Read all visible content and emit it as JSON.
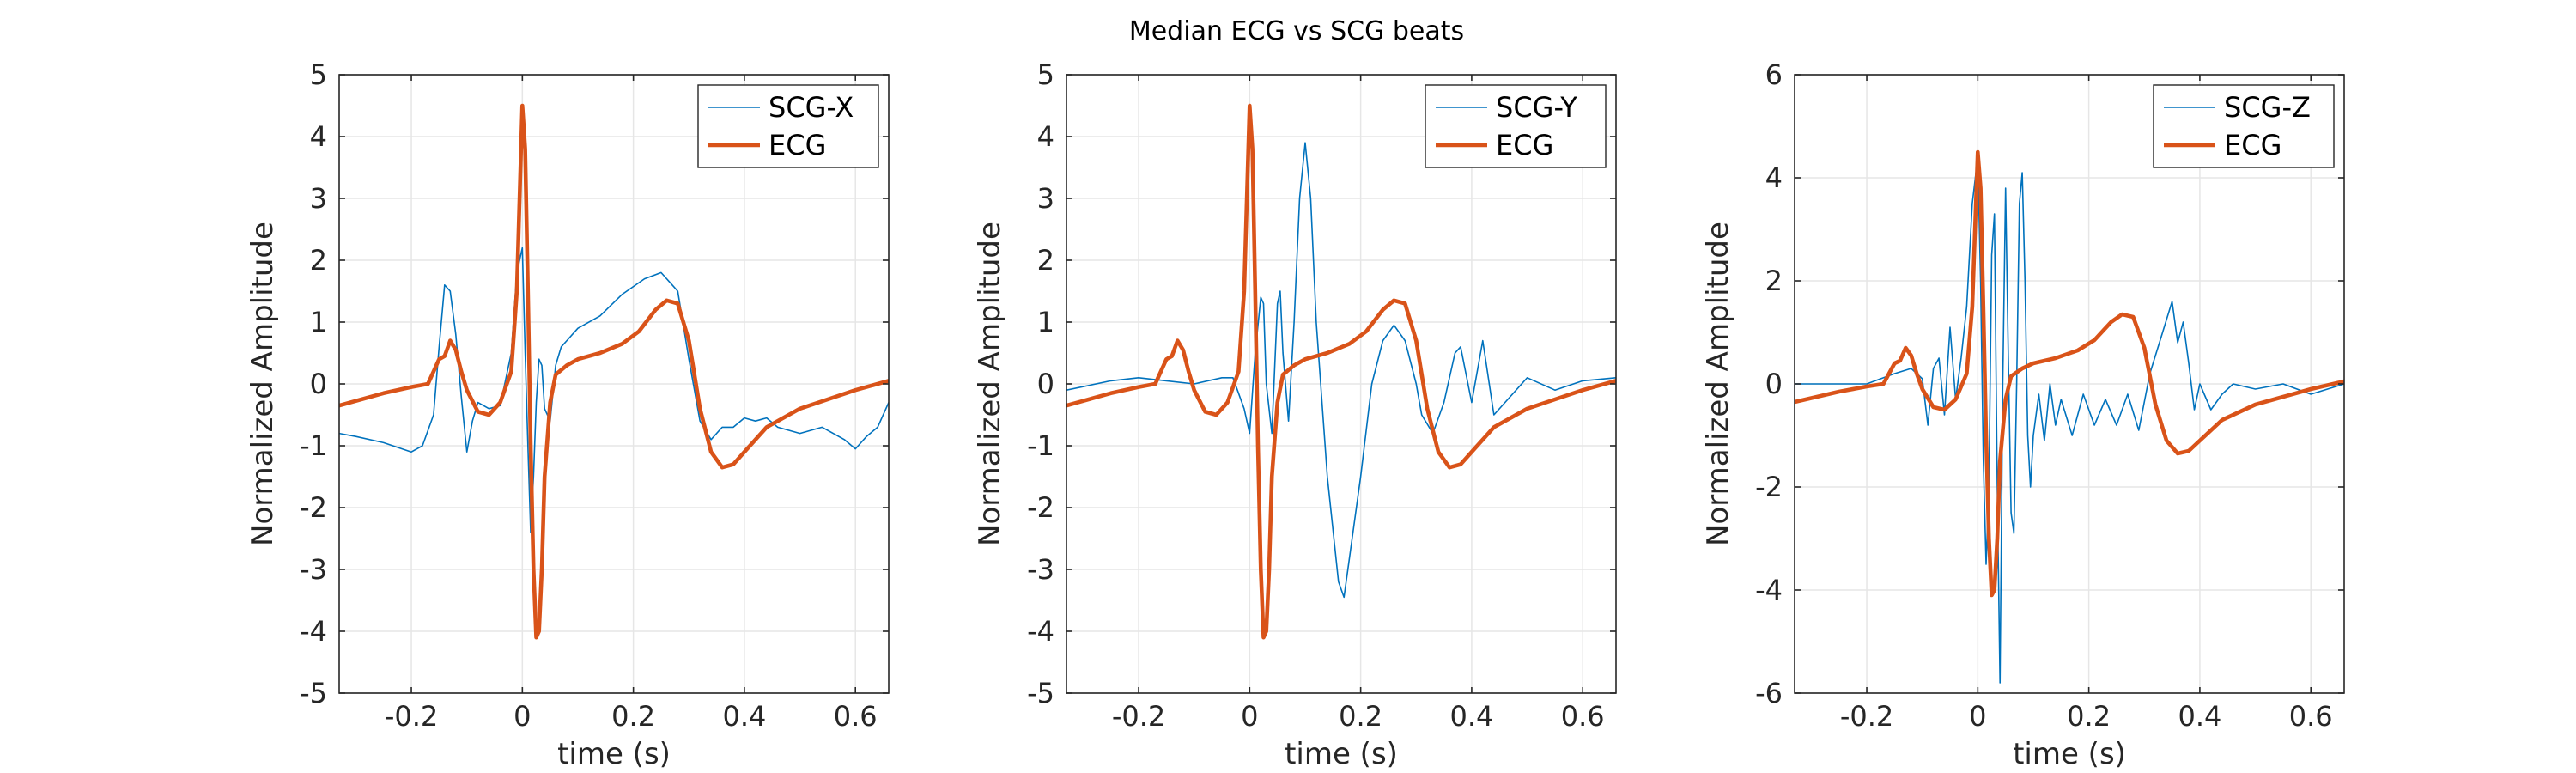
{
  "title": "Median ECG vs SCG beats",
  "colors": {
    "scg": "#0072BD",
    "ecg": "#D95319",
    "grid": "#e6e6e6",
    "axis": "#262626"
  },
  "chart_data": [
    {
      "type": "line",
      "xlabel": "time (s)",
      "ylabel": "Normalized Amplitude",
      "xlim": [
        -0.33,
        0.66
      ],
      "ylim": [
        -5,
        5
      ],
      "xticks": [
        -0.2,
        0,
        0.2,
        0.4,
        0.6
      ],
      "xtick_labels": [
        "-0.2",
        "0",
        "0.2",
        "0.4",
        "0.6"
      ],
      "yticks": [
        -5,
        -4,
        -3,
        -2,
        -1,
        0,
        1,
        2,
        3,
        4,
        5
      ],
      "ytick_labels": [
        "-5",
        "-4",
        "-3",
        "-2",
        "-1",
        "0",
        "1",
        "2",
        "3",
        "4",
        "5"
      ],
      "grid": true,
      "legend_position": "top-right",
      "series": [
        {
          "name": "SCG-X",
          "color": "#0072BD",
          "width": "thin",
          "x": [
            -0.33,
            -0.3,
            -0.25,
            -0.2,
            -0.18,
            -0.16,
            -0.15,
            -0.14,
            -0.13,
            -0.12,
            -0.11,
            -0.1,
            -0.09,
            -0.08,
            -0.06,
            -0.04,
            -0.02,
            -0.01,
            0.0,
            0.005,
            0.01,
            0.015,
            0.02,
            0.025,
            0.03,
            0.035,
            0.04,
            0.05,
            0.06,
            0.07,
            0.08,
            0.1,
            0.14,
            0.18,
            0.22,
            0.25,
            0.27,
            0.28,
            0.3,
            0.32,
            0.34,
            0.36,
            0.38,
            0.4,
            0.42,
            0.44,
            0.46,
            0.5,
            0.54,
            0.58,
            0.6,
            0.62,
            0.64,
            0.66
          ],
          "y": [
            -0.8,
            -0.85,
            -0.95,
            -1.1,
            -1.0,
            -0.5,
            0.6,
            1.6,
            1.5,
            0.8,
            -0.2,
            -1.1,
            -0.6,
            -0.3,
            -0.4,
            -0.35,
            0.5,
            1.8,
            2.2,
            0.5,
            -1.0,
            -2.4,
            -1.5,
            -0.3,
            0.4,
            0.3,
            -0.4,
            -0.6,
            0.3,
            0.6,
            0.7,
            0.9,
            1.1,
            1.45,
            1.7,
            1.8,
            1.6,
            1.5,
            0.4,
            -0.6,
            -0.9,
            -0.7,
            -0.7,
            -0.55,
            -0.6,
            -0.55,
            -0.7,
            -0.8,
            -0.7,
            -0.9,
            -1.05,
            -0.85,
            -0.7,
            -0.3
          ]
        },
        {
          "name": "ECG",
          "color": "#D95319",
          "width": "thick",
          "x": [
            -0.33,
            -0.25,
            -0.2,
            -0.17,
            -0.15,
            -0.14,
            -0.13,
            -0.12,
            -0.11,
            -0.1,
            -0.08,
            -0.06,
            -0.04,
            -0.02,
            -0.01,
            -0.005,
            0.0,
            0.005,
            0.01,
            0.015,
            0.02,
            0.025,
            0.03,
            0.035,
            0.04,
            0.05,
            0.06,
            0.08,
            0.1,
            0.14,
            0.18,
            0.21,
            0.24,
            0.26,
            0.28,
            0.3,
            0.32,
            0.34,
            0.36,
            0.38,
            0.4,
            0.44,
            0.5,
            0.55,
            0.6,
            0.66
          ],
          "y": [
            -0.35,
            -0.15,
            -0.05,
            0.0,
            0.4,
            0.45,
            0.7,
            0.55,
            0.2,
            -0.1,
            -0.45,
            -0.5,
            -0.3,
            0.2,
            1.5,
            3.0,
            4.5,
            3.8,
            1.5,
            -1.0,
            -3.0,
            -4.1,
            -4.0,
            -3.0,
            -1.5,
            -0.3,
            0.15,
            0.3,
            0.4,
            0.5,
            0.65,
            0.85,
            1.2,
            1.35,
            1.3,
            0.7,
            -0.4,
            -1.1,
            -1.35,
            -1.3,
            -1.1,
            -0.7,
            -0.4,
            -0.25,
            -0.1,
            0.05
          ]
        }
      ]
    },
    {
      "type": "line",
      "xlabel": "time (s)",
      "ylabel": "Normalized Amplitude",
      "xlim": [
        -0.33,
        0.66
      ],
      "ylim": [
        -5,
        5
      ],
      "xticks": [
        -0.2,
        0,
        0.2,
        0.4,
        0.6
      ],
      "xtick_labels": [
        "-0.2",
        "0",
        "0.2",
        "0.4",
        "0.6"
      ],
      "yticks": [
        -5,
        -4,
        -3,
        -2,
        -1,
        0,
        1,
        2,
        3,
        4,
        5
      ],
      "ytick_labels": [
        "-5",
        "-4",
        "-3",
        "-2",
        "-1",
        "0",
        "1",
        "2",
        "3",
        "4",
        "5"
      ],
      "grid": true,
      "legend_position": "top-right",
      "series": [
        {
          "name": "SCG-Y",
          "color": "#0072BD",
          "width": "thin",
          "x": [
            -0.33,
            -0.25,
            -0.2,
            -0.15,
            -0.1,
            -0.05,
            -0.03,
            -0.01,
            0.0,
            0.01,
            0.02,
            0.025,
            0.03,
            0.04,
            0.05,
            0.055,
            0.06,
            0.07,
            0.08,
            0.09,
            0.1,
            0.11,
            0.12,
            0.14,
            0.16,
            0.17,
            0.18,
            0.2,
            0.22,
            0.24,
            0.26,
            0.28,
            0.3,
            0.31,
            0.33,
            0.35,
            0.37,
            0.38,
            0.4,
            0.42,
            0.44,
            0.46,
            0.5,
            0.55,
            0.6,
            0.66
          ],
          "y": [
            -0.1,
            0.05,
            0.1,
            0.05,
            0.0,
            0.1,
            0.1,
            -0.4,
            -0.8,
            0.5,
            1.4,
            1.3,
            0.0,
            -0.8,
            1.3,
            1.5,
            0.5,
            -0.6,
            1.0,
            3.0,
            3.9,
            3.0,
            1.0,
            -1.5,
            -3.2,
            -3.45,
            -2.8,
            -1.5,
            0.0,
            0.7,
            0.95,
            0.7,
            0.0,
            -0.5,
            -0.8,
            -0.3,
            0.5,
            0.6,
            -0.3,
            0.7,
            -0.5,
            -0.3,
            0.1,
            -0.1,
            0.05,
            0.1
          ]
        },
        {
          "name": "ECG",
          "color": "#D95319",
          "width": "thick",
          "x": [
            -0.33,
            -0.25,
            -0.2,
            -0.17,
            -0.15,
            -0.14,
            -0.13,
            -0.12,
            -0.11,
            -0.1,
            -0.08,
            -0.06,
            -0.04,
            -0.02,
            -0.01,
            -0.005,
            0.0,
            0.005,
            0.01,
            0.015,
            0.02,
            0.025,
            0.03,
            0.035,
            0.04,
            0.05,
            0.06,
            0.08,
            0.1,
            0.14,
            0.18,
            0.21,
            0.24,
            0.26,
            0.28,
            0.3,
            0.32,
            0.34,
            0.36,
            0.38,
            0.4,
            0.44,
            0.5,
            0.55,
            0.6,
            0.66
          ],
          "y": [
            -0.35,
            -0.15,
            -0.05,
            0.0,
            0.4,
            0.45,
            0.7,
            0.55,
            0.2,
            -0.1,
            -0.45,
            -0.5,
            -0.3,
            0.2,
            1.5,
            3.0,
            4.5,
            3.8,
            1.5,
            -1.0,
            -3.0,
            -4.1,
            -4.0,
            -3.0,
            -1.5,
            -0.3,
            0.15,
            0.3,
            0.4,
            0.5,
            0.65,
            0.85,
            1.2,
            1.35,
            1.3,
            0.7,
            -0.4,
            -1.1,
            -1.35,
            -1.3,
            -1.1,
            -0.7,
            -0.4,
            -0.25,
            -0.1,
            0.05
          ]
        }
      ]
    },
    {
      "type": "line",
      "xlabel": "time (s)",
      "ylabel": "Normalized Amplitude",
      "xlim": [
        -0.33,
        0.66
      ],
      "ylim": [
        -6,
        6
      ],
      "xticks": [
        -0.2,
        0,
        0.2,
        0.4,
        0.6
      ],
      "xtick_labels": [
        "-0.2",
        "0",
        "0.2",
        "0.4",
        "0.6"
      ],
      "yticks": [
        -6,
        -4,
        -2,
        0,
        2,
        4,
        6
      ],
      "ytick_labels": [
        "-6",
        "-4",
        "-2",
        "0",
        "2",
        "4",
        "6"
      ],
      "grid": true,
      "legend_position": "top-right",
      "series": [
        {
          "name": "SCG-Z",
          "color": "#0072BD",
          "width": "thin",
          "x": [
            -0.33,
            -0.25,
            -0.2,
            -0.15,
            -0.12,
            -0.1,
            -0.09,
            -0.08,
            -0.07,
            -0.06,
            -0.05,
            -0.04,
            -0.03,
            -0.02,
            -0.01,
            0.0,
            0.005,
            0.01,
            0.015,
            0.02,
            0.025,
            0.03,
            0.035,
            0.04,
            0.045,
            0.05,
            0.055,
            0.06,
            0.065,
            0.07,
            0.075,
            0.08,
            0.085,
            0.09,
            0.095,
            0.1,
            0.11,
            0.12,
            0.13,
            0.14,
            0.15,
            0.17,
            0.19,
            0.21,
            0.23,
            0.25,
            0.27,
            0.29,
            0.31,
            0.33,
            0.35,
            0.36,
            0.37,
            0.38,
            0.39,
            0.4,
            0.42,
            0.44,
            0.46,
            0.5,
            0.55,
            0.6,
            0.66
          ],
          "y": [
            0.0,
            0.0,
            0.0,
            0.2,
            0.3,
            0.1,
            -0.8,
            0.3,
            0.5,
            -0.6,
            1.1,
            -0.3,
            0.5,
            1.5,
            3.5,
            4.4,
            2.0,
            -1.5,
            -3.5,
            -2.0,
            2.5,
            3.3,
            -2.0,
            -5.8,
            0.0,
            3.8,
            0.5,
            -2.5,
            -2.9,
            0.0,
            3.5,
            4.1,
            2.0,
            -1.0,
            -2.0,
            -1.0,
            -0.2,
            -1.1,
            0.0,
            -0.8,
            -0.3,
            -1.0,
            -0.2,
            -0.8,
            -0.3,
            -0.8,
            -0.2,
            -0.9,
            0.2,
            0.9,
            1.6,
            0.8,
            1.2,
            0.4,
            -0.5,
            0.0,
            -0.5,
            -0.2,
            0.0,
            -0.1,
            0.0,
            -0.2,
            0.0
          ]
        },
        {
          "name": "ECG",
          "color": "#D95319",
          "width": "thick",
          "x": [
            -0.33,
            -0.25,
            -0.2,
            -0.17,
            -0.15,
            -0.14,
            -0.13,
            -0.12,
            -0.11,
            -0.1,
            -0.08,
            -0.06,
            -0.04,
            -0.02,
            -0.01,
            -0.005,
            0.0,
            0.005,
            0.01,
            0.015,
            0.02,
            0.025,
            0.03,
            0.035,
            0.04,
            0.05,
            0.06,
            0.08,
            0.1,
            0.14,
            0.18,
            0.21,
            0.24,
            0.26,
            0.28,
            0.3,
            0.32,
            0.34,
            0.36,
            0.38,
            0.4,
            0.44,
            0.5,
            0.55,
            0.6,
            0.66
          ],
          "y": [
            -0.35,
            -0.15,
            -0.05,
            0.0,
            0.4,
            0.45,
            0.7,
            0.55,
            0.2,
            -0.1,
            -0.45,
            -0.5,
            -0.3,
            0.2,
            1.5,
            3.0,
            4.5,
            3.8,
            1.5,
            -1.0,
            -3.0,
            -4.1,
            -4.0,
            -3.0,
            -1.5,
            -0.3,
            0.15,
            0.3,
            0.4,
            0.5,
            0.65,
            0.85,
            1.2,
            1.35,
            1.3,
            0.7,
            -0.4,
            -1.1,
            -1.35,
            -1.3,
            -1.1,
            -0.7,
            -0.4,
            -0.25,
            -0.1,
            0.05
          ]
        }
      ]
    }
  ]
}
